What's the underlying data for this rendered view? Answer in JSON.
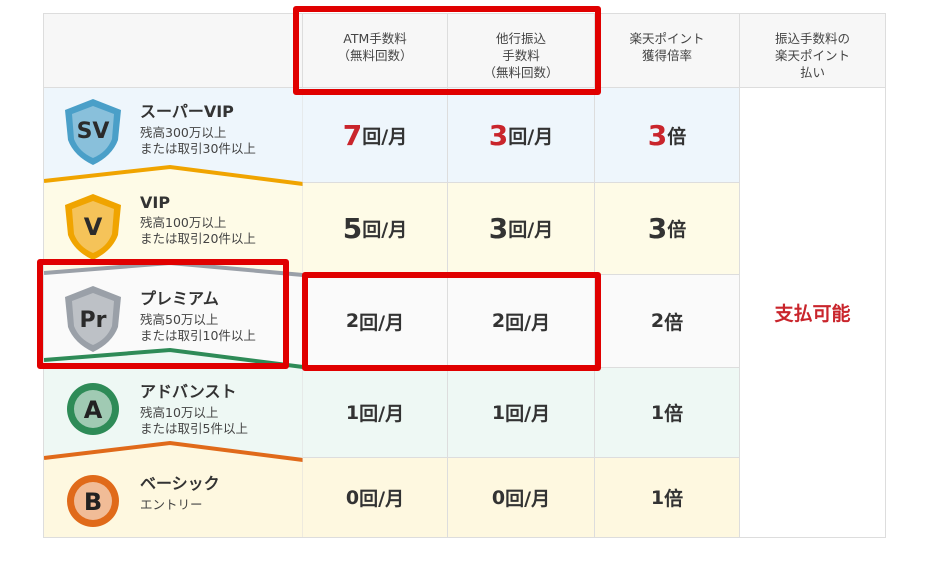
{
  "headers": {
    "tier": "",
    "atm": [
      "ATM手数料",
      "（無料回数）"
    ],
    "transfer": [
      "他行振込",
      "手数料",
      "（無料回数）"
    ],
    "points": [
      "楽天ポイント",
      "獲得倍率"
    ],
    "pay": [
      "振込手数料の",
      "楽天ポイント",
      "払い"
    ]
  },
  "pay_value": "支払可能",
  "rows": [
    {
      "icon": "SV",
      "icon_name": "super-vip-shield-icon",
      "name": "スーパーVIP",
      "cond": [
        "残高300万以上",
        "または取引30件以上"
      ],
      "atm": {
        "num": "7",
        "unit": "回/月"
      },
      "transfer": {
        "num": "3",
        "unit": "回/月"
      },
      "points": {
        "num": "3",
        "unit": "倍"
      },
      "style": "red",
      "bg": "#eef6fc",
      "accent": "#4a9fc8"
    },
    {
      "icon": "V",
      "icon_name": "vip-shield-icon",
      "name": "VIP",
      "cond": [
        "残高100万以上",
        "または取引20件以上"
      ],
      "atm": {
        "num": "5",
        "unit": "回/月"
      },
      "transfer": {
        "num": "3",
        "unit": "回/月"
      },
      "points": {
        "num": "3",
        "unit": "倍"
      },
      "style": "large",
      "bg": "#fefbe7",
      "accent": "#f0a400"
    },
    {
      "icon": "Pr",
      "icon_name": "premium-shield-icon",
      "name": "プレミアム",
      "cond": [
        "残高50万以上",
        "または取引10件以上"
      ],
      "atm": {
        "num": "2",
        "unit": "回/月"
      },
      "transfer": {
        "num": "2",
        "unit": "回/月"
      },
      "points": {
        "num": "2",
        "unit": "倍"
      },
      "style": "normal",
      "bg": "#fafafa",
      "accent": "#9aa0a8"
    },
    {
      "icon": "A",
      "icon_name": "advance-circle-icon",
      "name": "アドバンスト",
      "cond": [
        "残高10万以上",
        "または取引5件以上"
      ],
      "atm": {
        "num": "1",
        "unit": "回/月"
      },
      "transfer": {
        "num": "1",
        "unit": "回/月"
      },
      "points": {
        "num": "1",
        "unit": "倍"
      },
      "style": "normal",
      "bg": "#eef8f4",
      "accent": "#2e8b57"
    },
    {
      "icon": "B",
      "icon_name": "basic-circle-icon",
      "name": "ベーシック",
      "cond": [
        "エントリー"
      ],
      "atm": {
        "num": "0",
        "unit": "回/月"
      },
      "transfer": {
        "num": "0",
        "unit": "回/月"
      },
      "points": {
        "num": "1",
        "unit": "倍"
      },
      "style": "normal",
      "bg": "#fef8e0",
      "accent": "#e06a1a"
    }
  ],
  "colors": {
    "highlight_box": "#e00000",
    "emphasis": "#c9252c"
  }
}
